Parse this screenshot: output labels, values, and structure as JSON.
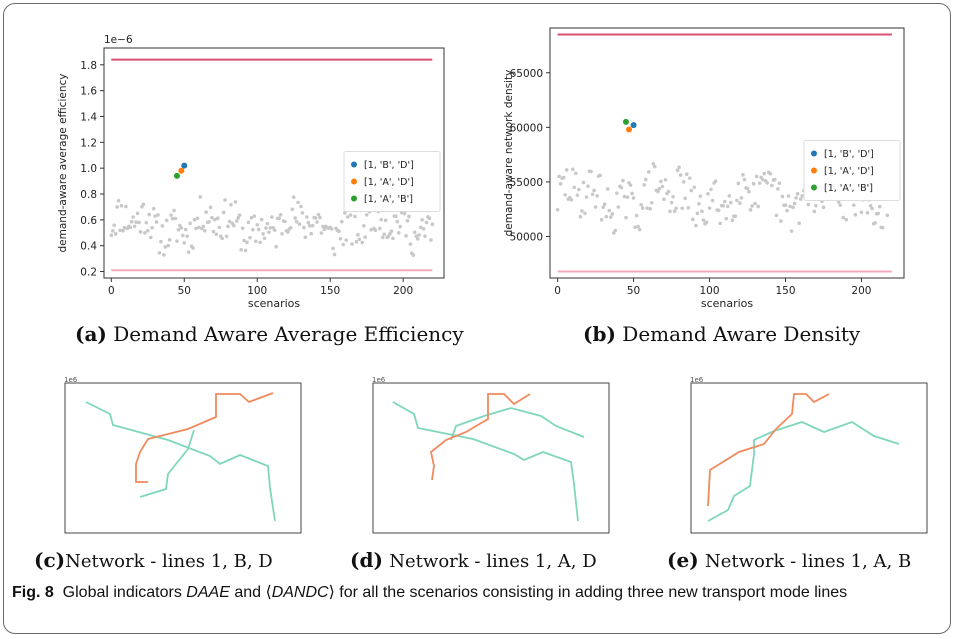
{
  "chart_data": [
    {
      "type": "scatter",
      "id": "a",
      "ylabel": "demand-aware average efficiency",
      "xlabel": "scenarios",
      "offset_text": "1e−6",
      "ylim": [
        0.15,
        1.93
      ],
      "xlim": [
        -5,
        228
      ],
      "yticks": [
        "0.2",
        "0.4",
        "0.6",
        "0.8",
        "1.0",
        "1.2",
        "1.4",
        "1.6",
        "1.8"
      ],
      "ytick_values": [
        0.2,
        0.4,
        0.6,
        0.8,
        1.0,
        1.2,
        1.4,
        1.6,
        1.8
      ],
      "xticks": [
        "0",
        "50",
        "100",
        "150",
        "200"
      ],
      "xtick_values": [
        0,
        50,
        100,
        150,
        200
      ],
      "hlines": [
        {
          "y": 1.84,
          "color": "#d94f70"
        },
        {
          "y": 0.21,
          "color": "#f4aabd"
        }
      ],
      "background_series": {
        "color": "#c8c8c8",
        "count": 222,
        "seed": 11,
        "y_center": 0.56,
        "y_spread": 0.19
      },
      "series": [
        {
          "name": "[1, 'B', 'D']",
          "color": "#1f77b4",
          "x": 50,
          "y": 1.02
        },
        {
          "name": "[1, 'A', 'D']",
          "color": "#ff7f0e",
          "x": 48,
          "y": 0.98
        },
        {
          "name": "[1, 'A', 'B']",
          "color": "#2ca02c",
          "x": 45,
          "y": 0.94
        }
      ],
      "legend": "center-right"
    },
    {
      "type": "scatter",
      "id": "b",
      "ylabel": "demand-aware network density",
      "xlabel": "scenarios",
      "ylim": [
        46200,
        69100
      ],
      "xlim": [
        -5,
        228
      ],
      "yticks": [
        "50000",
        "55000",
        "60000",
        "65000"
      ],
      "ytick_values": [
        50000,
        55000,
        60000,
        65000
      ],
      "xticks": [
        "0",
        "50",
        "100",
        "150",
        "200"
      ],
      "xtick_values": [
        0,
        50,
        100,
        150,
        200
      ],
      "hlines": [
        {
          "y": 68500,
          "color": "#d94f70"
        },
        {
          "y": 46800,
          "color": "#f4aabd"
        }
      ],
      "background_series": {
        "color": "#c8c8c8",
        "count": 222,
        "seed": 29,
        "y_center": 53500,
        "y_spread": 2600
      },
      "series": [
        {
          "name": "[1, 'B', 'D']",
          "color": "#1f77b4",
          "x": 50,
          "y": 60200
        },
        {
          "name": "[1, 'A', 'D']",
          "color": "#ff7f0e",
          "x": 47,
          "y": 59800
        },
        {
          "name": "[1, 'A', 'B']",
          "color": "#2ca02c",
          "x": 45,
          "y": 60500
        }
      ],
      "legend": "center-right"
    }
  ],
  "networks": [
    {
      "id": "c",
      "corner_label": "1e6"
    },
    {
      "id": "d",
      "corner_label": "1e6"
    },
    {
      "id": "e",
      "corner_label": "1e6"
    }
  ],
  "colors": {
    "line_green": "#7fd6bd",
    "line_orange": "#f08a5d"
  },
  "captions": {
    "a_label": "(a)",
    "a_text": "Demand Aware Average Efficiency",
    "b_label": "(b)",
    "b_text": "Demand Aware Density",
    "c_label": "(c)",
    "c_text": "Network - lines 1, B, D",
    "d_label": "(d)",
    "d_text": "Network - lines 1, A, D",
    "e_label": "(e)",
    "e_text": "Network - lines 1, A, B"
  },
  "figure_caption": {
    "label": "Fig. 8",
    "text_1": "Global indicators ",
    "daae": "DAAE",
    "text_2": " and ⟨",
    "dandc": "DANDC",
    "text_3": "⟩ for all the scenarios consisting in adding three new transport mode lines"
  }
}
